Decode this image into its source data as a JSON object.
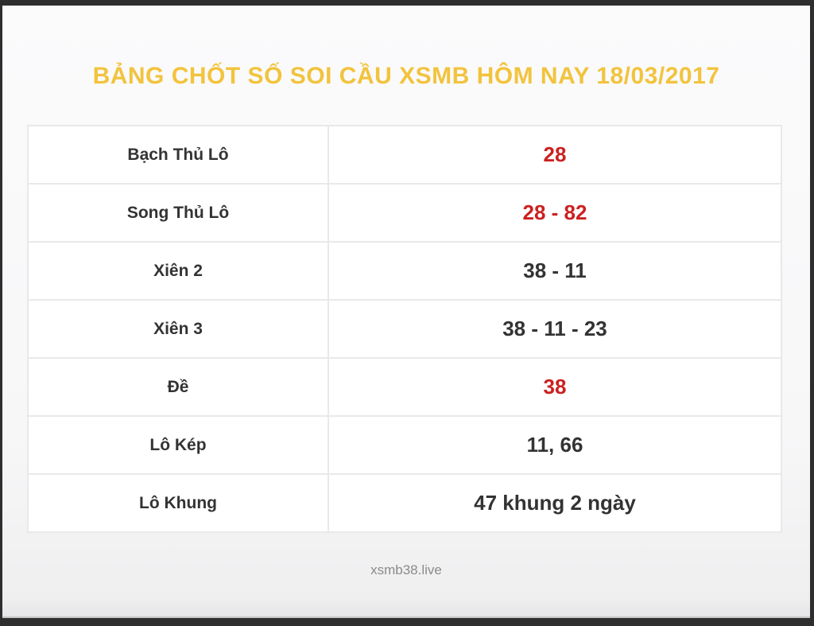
{
  "page": {
    "title": "BẢNG CHỐT SỐ SOI CẦU XSMB HÔM NAY 18/03/2017",
    "footer": "xsmb38.live"
  },
  "colors": {
    "title": "#f2c33d",
    "highlight": "#cb2121",
    "text": "#333333",
    "footer": "#8b8b8b",
    "frame": "#2e2e2e"
  },
  "table": {
    "rows": [
      {
        "label": "Bạch Thủ Lô",
        "value": "28",
        "value_color": "#cb2121"
      },
      {
        "label": "Song Thủ Lô",
        "value": "28 - 82",
        "value_color": "#cb2121"
      },
      {
        "label": "Xiên 2",
        "value": "38 - 11",
        "value_color": "#333333"
      },
      {
        "label": "Xiên 3",
        "value": "38 - 11 - 23",
        "value_color": "#333333"
      },
      {
        "label": "Đề",
        "value": "38",
        "value_color": "#cb2121"
      },
      {
        "label": "Lô Kép",
        "value": "11, 66",
        "value_color": "#333333"
      },
      {
        "label": "Lô Khung",
        "value": "47 khung 2 ngày",
        "value_color": "#333333"
      }
    ]
  }
}
